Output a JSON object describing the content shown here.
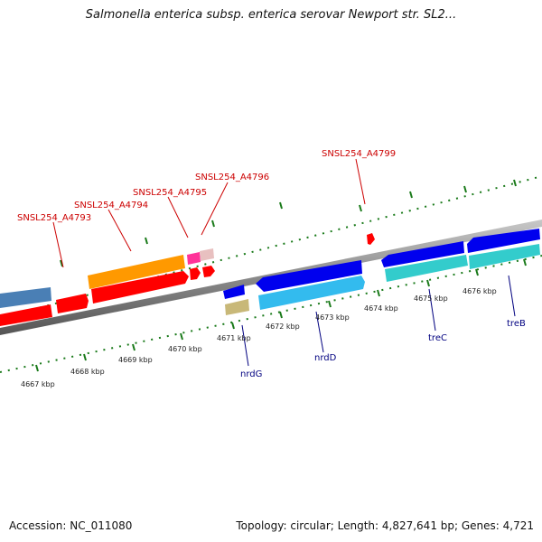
{
  "title": "Salmonella enterica subsp. enterica serovar Newport str. SL2...",
  "accession": "Accession: NC_011080",
  "stats": "Topology: circular; Length: 4,827,641 bp; Genes: 4,721",
  "ruler_labels": [
    "4667 kbp",
    "4668 kbp",
    "4669 kbp",
    "4670 kbp",
    "4671 kbp",
    "4672 kbp",
    "4673 kbp",
    "4674 kbp",
    "4675 kbp",
    "4676 kbp"
  ],
  "upper_gene_labels": [
    "SNSL254_A4793",
    "SNSL254_A4794",
    "SNSL254_A4795",
    "SNSL254_A4796",
    "SNSL254_A4799"
  ],
  "lower_gene_labels": [
    "nrdG",
    "nrdD",
    "treC",
    "treB"
  ],
  "colors": {
    "red": "#ff0000",
    "orange": "#ff9900",
    "blue": "#0000ee",
    "cyan": "#33cccc",
    "steel_blue": "#4a7fb5",
    "khaki": "#c8b878",
    "pink": "#ff3399",
    "backbone": "#8a8a8a",
    "tick": "#1a7a1a"
  }
}
